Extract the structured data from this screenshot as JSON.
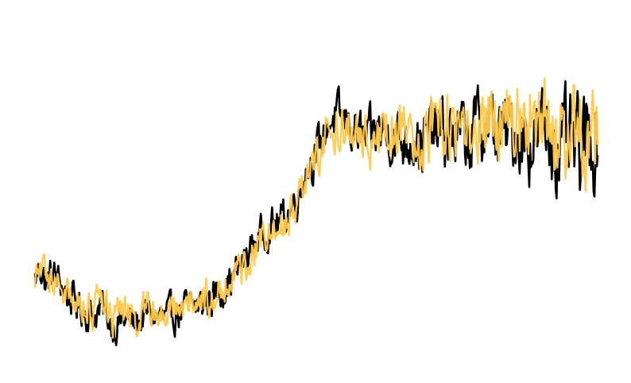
{
  "chart_data": {
    "type": "line",
    "title": "",
    "xlabel": "",
    "ylabel": "",
    "axes_visible": false,
    "grid": false,
    "legend": "none",
    "xlim": [
      0,
      1
    ],
    "ylim": [
      0,
      1
    ],
    "series": [
      {
        "color": "#000000",
        "points": [
          [
            0.0,
            0.23
          ],
          [
            0.01,
            0.27
          ],
          [
            0.02,
            0.21
          ],
          [
            0.03,
            0.25
          ],
          [
            0.045,
            0.22
          ],
          [
            0.06,
            0.18
          ],
          [
            0.08,
            0.15
          ],
          [
            0.1,
            0.12
          ],
          [
            0.12,
            0.14
          ],
          [
            0.14,
            0.09
          ],
          [
            0.16,
            0.11
          ],
          [
            0.18,
            0.1
          ],
          [
            0.2,
            0.13
          ],
          [
            0.23,
            0.11
          ],
          [
            0.26,
            0.14
          ],
          [
            0.29,
            0.15
          ],
          [
            0.31,
            0.17
          ],
          [
            0.33,
            0.2
          ],
          [
            0.35,
            0.23
          ],
          [
            0.37,
            0.28
          ],
          [
            0.39,
            0.34
          ],
          [
            0.41,
            0.38
          ],
          [
            0.43,
            0.4
          ],
          [
            0.45,
            0.43
          ],
          [
            0.47,
            0.49
          ],
          [
            0.48,
            0.56
          ],
          [
            0.49,
            0.58
          ],
          [
            0.5,
            0.61
          ],
          [
            0.51,
            0.65
          ],
          [
            0.52,
            0.7
          ],
          [
            0.535,
            0.72
          ],
          [
            0.55,
            0.7
          ],
          [
            0.57,
            0.68
          ],
          [
            0.59,
            0.64
          ],
          [
            0.61,
            0.68
          ],
          [
            0.63,
            0.67
          ],
          [
            0.65,
            0.65
          ],
          [
            0.67,
            0.66
          ],
          [
            0.69,
            0.64
          ],
          [
            0.71,
            0.68
          ],
          [
            0.73,
            0.66
          ],
          [
            0.75,
            0.67
          ],
          [
            0.77,
            0.65
          ],
          [
            0.79,
            0.7
          ],
          [
            0.81,
            0.69
          ],
          [
            0.83,
            0.66
          ],
          [
            0.85,
            0.69
          ],
          [
            0.87,
            0.66
          ],
          [
            0.89,
            0.65
          ],
          [
            0.91,
            0.69
          ],
          [
            0.93,
            0.62
          ],
          [
            0.95,
            0.64
          ],
          [
            0.97,
            0.61
          ],
          [
            0.985,
            0.66
          ],
          [
            1.0,
            0.65
          ]
        ]
      },
      {
        "color": "#FFC94D",
        "points": [
          [
            0.0,
            0.24
          ],
          [
            0.01,
            0.26
          ],
          [
            0.02,
            0.22
          ],
          [
            0.03,
            0.24
          ],
          [
            0.045,
            0.21
          ],
          [
            0.06,
            0.19
          ],
          [
            0.08,
            0.16
          ],
          [
            0.1,
            0.14
          ],
          [
            0.12,
            0.15
          ],
          [
            0.14,
            0.11
          ],
          [
            0.16,
            0.13
          ],
          [
            0.18,
            0.12
          ],
          [
            0.2,
            0.13
          ],
          [
            0.23,
            0.14
          ],
          [
            0.26,
            0.15
          ],
          [
            0.29,
            0.17
          ],
          [
            0.31,
            0.19
          ],
          [
            0.33,
            0.21
          ],
          [
            0.35,
            0.24
          ],
          [
            0.37,
            0.26
          ],
          [
            0.39,
            0.32
          ],
          [
            0.41,
            0.36
          ],
          [
            0.43,
            0.38
          ],
          [
            0.45,
            0.42
          ],
          [
            0.47,
            0.47
          ],
          [
            0.48,
            0.52
          ],
          [
            0.49,
            0.56
          ],
          [
            0.5,
            0.58
          ],
          [
            0.51,
            0.62
          ],
          [
            0.52,
            0.66
          ],
          [
            0.535,
            0.7
          ],
          [
            0.55,
            0.69
          ],
          [
            0.57,
            0.66
          ],
          [
            0.59,
            0.65
          ],
          [
            0.61,
            0.68
          ],
          [
            0.63,
            0.66
          ],
          [
            0.65,
            0.67
          ],
          [
            0.67,
            0.65
          ],
          [
            0.69,
            0.66
          ],
          [
            0.71,
            0.67
          ],
          [
            0.73,
            0.68
          ],
          [
            0.75,
            0.66
          ],
          [
            0.77,
            0.68
          ],
          [
            0.79,
            0.69
          ],
          [
            0.81,
            0.7
          ],
          [
            0.83,
            0.68
          ],
          [
            0.85,
            0.7
          ],
          [
            0.87,
            0.69
          ],
          [
            0.89,
            0.67
          ],
          [
            0.91,
            0.7
          ],
          [
            0.93,
            0.69
          ],
          [
            0.95,
            0.68
          ],
          [
            0.97,
            0.66
          ],
          [
            0.985,
            0.69
          ],
          [
            1.0,
            0.67
          ]
        ]
      }
    ]
  }
}
